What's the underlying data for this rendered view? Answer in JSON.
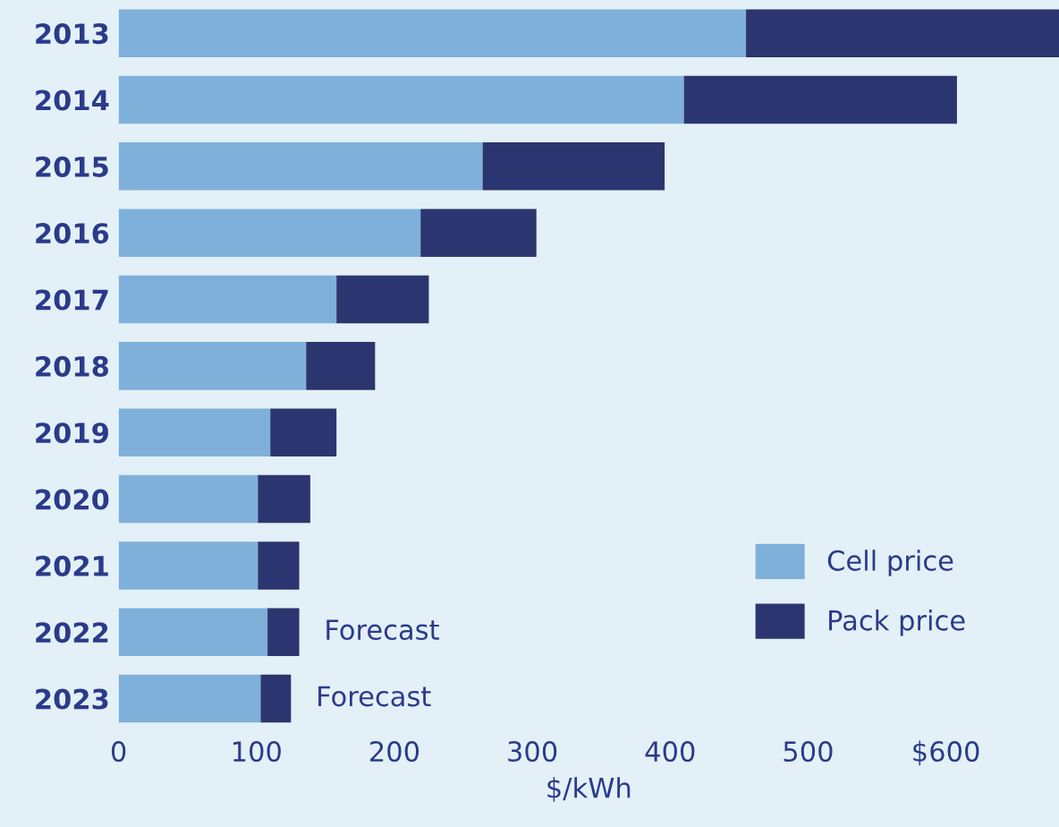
{
  "chart_data": {
    "type": "bar",
    "orientation": "horizontal",
    "stacked": true,
    "xlabel": "$/kWh",
    "categories": [
      "2013",
      "2014",
      "2015",
      "2016",
      "2017",
      "2018",
      "2019",
      "2020",
      "2021",
      "2022",
      "2023"
    ],
    "series": [
      {
        "name": "Cell price",
        "color": "#7fb0da",
        "values": [
          455,
          410,
          264,
          219,
          158,
          136,
          110,
          101,
          101,
          108,
          103
        ]
      },
      {
        "name": "Pack price",
        "color": "#2b3670",
        "values": [
          227,
          198,
          132,
          84,
          67,
          50,
          48,
          38,
          30,
          23,
          22
        ]
      }
    ],
    "xlim": [
      0,
      682
    ],
    "xticks": [
      0,
      100,
      200,
      300,
      400,
      500,
      {
        "value": 600,
        "label": "$600"
      }
    ],
    "annotations": [
      {
        "text": "Forecast",
        "x": 131,
        "y": "2022"
      },
      {
        "text": "Forecast",
        "x": 125,
        "y": "2023"
      }
    ],
    "legend": "bottom right",
    "grid": false
  }
}
